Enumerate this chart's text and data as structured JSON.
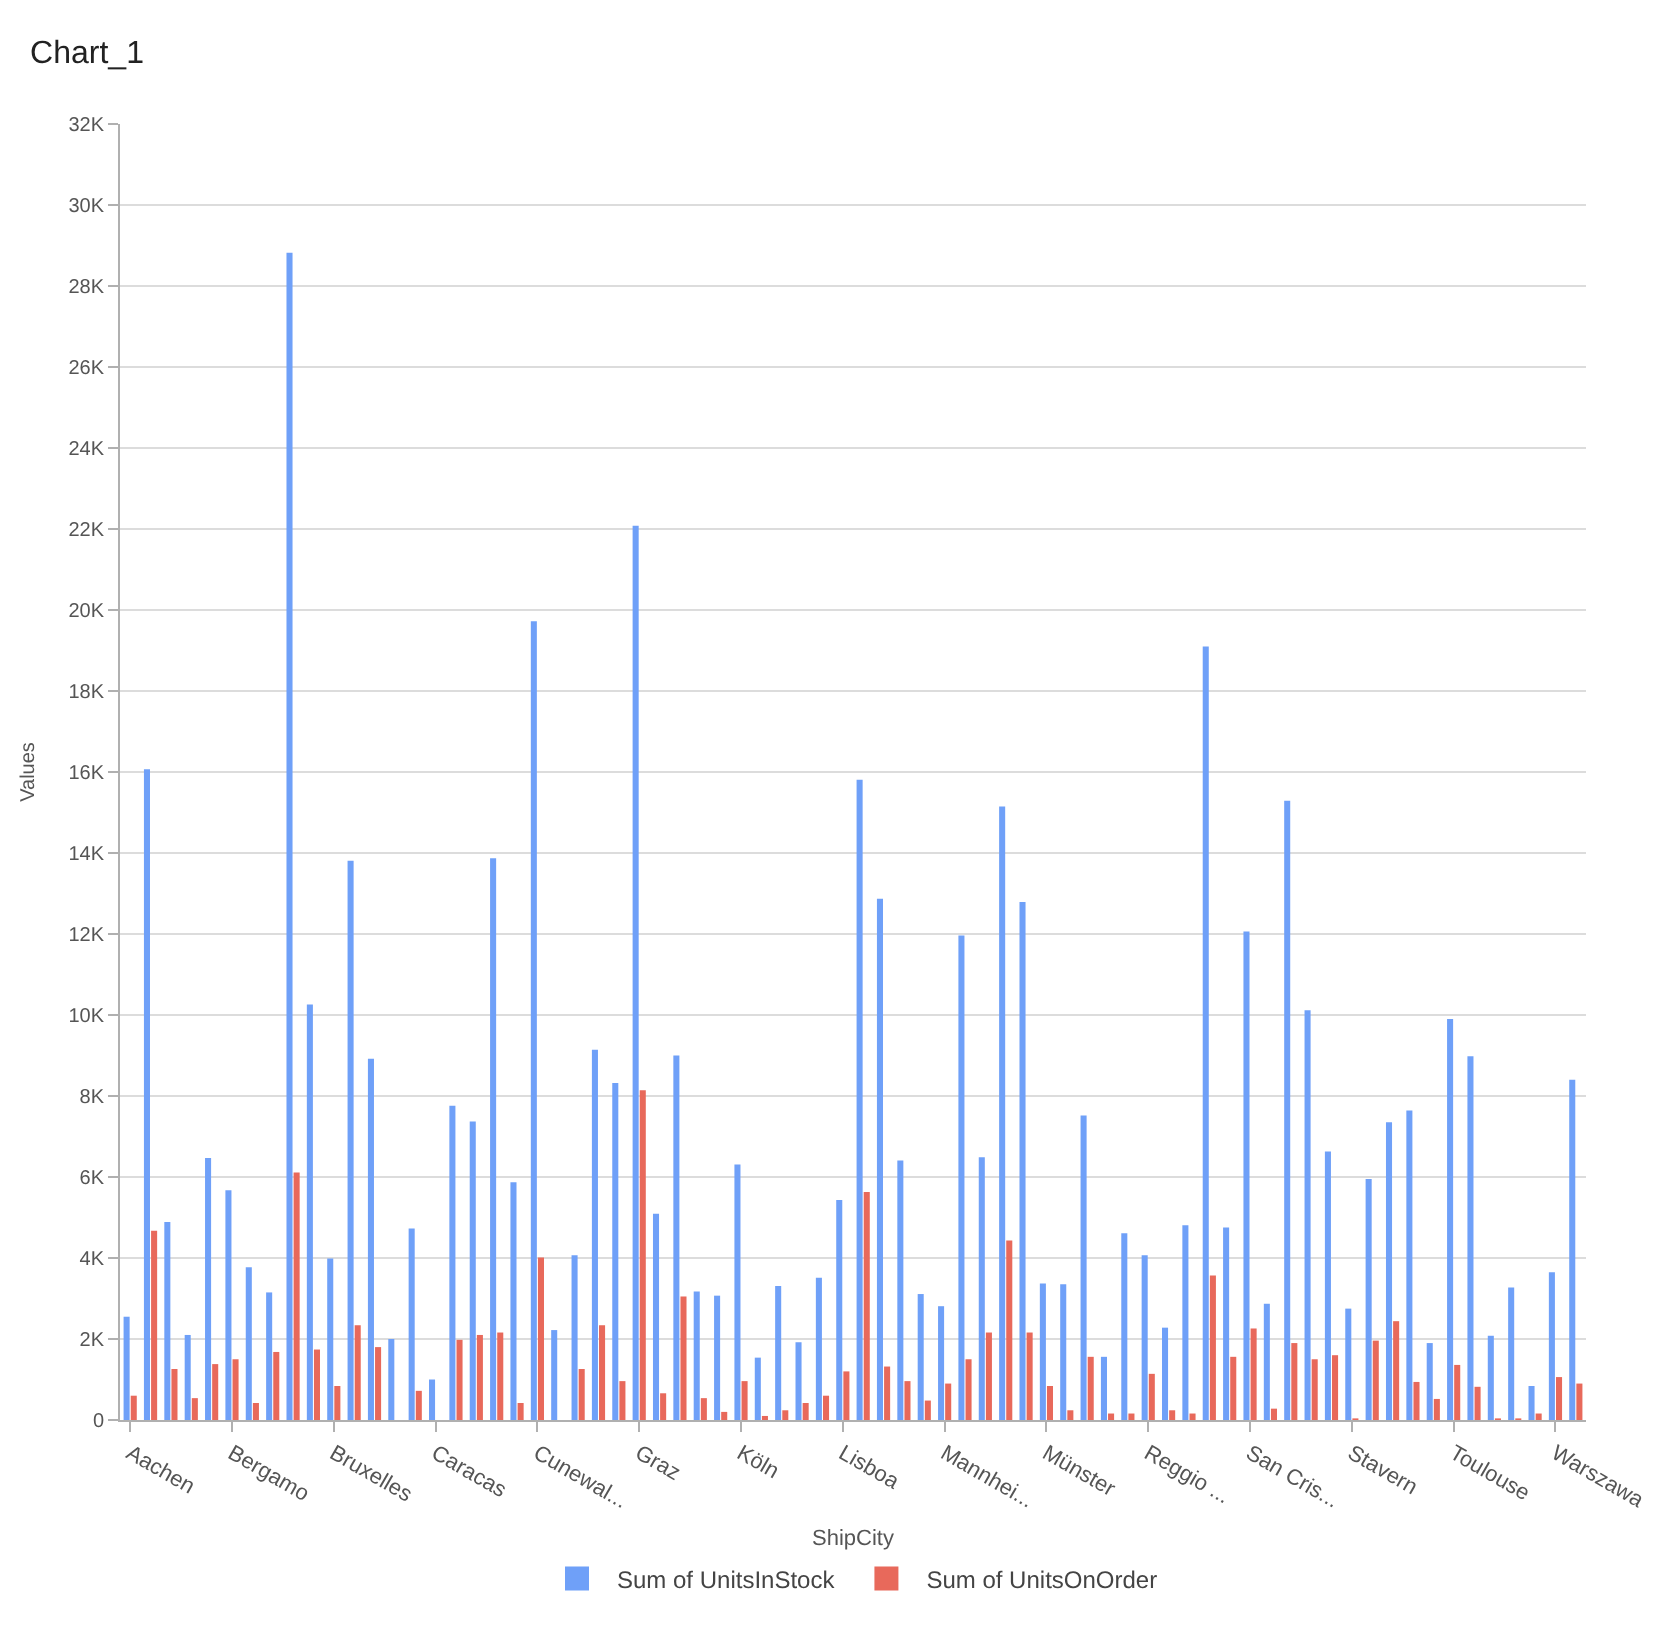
{
  "chart_data": {
    "type": "bar",
    "title": "Chart_1",
    "xlabel": "ShipCity",
    "ylabel": "Values",
    "categories": [
      "Aachen",
      null,
      null,
      null,
      null,
      "Bergamo",
      null,
      null,
      null,
      null,
      "Bruxelles",
      null,
      null,
      null,
      null,
      "Caracas",
      null,
      null,
      null,
      null,
      "Cunewal...",
      null,
      null,
      null,
      null,
      "Graz",
      null,
      null,
      null,
      null,
      "Köln",
      null,
      null,
      null,
      null,
      "Lisboa",
      null,
      null,
      null,
      null,
      "Mannhei...",
      null,
      null,
      null,
      null,
      "Münster",
      null,
      null,
      null,
      null,
      "Reggio ...",
      null,
      null,
      null,
      null,
      "San Cris...",
      null,
      null,
      null,
      null,
      "Stavern",
      null,
      null,
      null,
      null,
      "Toulouse",
      null,
      null,
      null,
      null,
      "Warszawa",
      null
    ],
    "series": [
      {
        "name": "Sum of UnitsInStock",
        "color": "#6fa0f8",
        "values": [
          2550,
          16070,
          4890,
          2100,
          6470,
          5670,
          3770,
          3150,
          28820,
          10260,
          3990,
          13810,
          8920,
          2000,
          4730,
          1000,
          7760,
          7370,
          13870,
          5870,
          19720,
          2220,
          4070,
          9140,
          8320,
          22080,
          5090,
          9000,
          3170,
          3070,
          6310,
          1540,
          3310,
          1920,
          3510,
          5430,
          15810,
          12870,
          6410,
          3110,
          2810,
          11960,
          6490,
          15150,
          12790,
          3370,
          3350,
          7520,
          1560,
          4610,
          4070,
          2280,
          4810,
          19100,
          4750,
          12060,
          2870,
          15290,
          10120,
          6630,
          2750,
          5950,
          7350,
          7640,
          1900,
          9900,
          8980,
          2080,
          3270,
          840,
          3650,
          8400
        ]
      },
      {
        "name": "Sum of UnitsOnOrder",
        "color": "#e8695b",
        "values": [
          600,
          4670,
          1260,
          540,
          1380,
          1500,
          420,
          1680,
          6110,
          1740,
          840,
          2340,
          1800,
          0,
          720,
          0,
          1980,
          2100,
          2160,
          420,
          4010,
          0,
          1260,
          2340,
          960,
          8140,
          660,
          3050,
          540,
          200,
          960,
          100,
          240,
          420,
          600,
          1200,
          5630,
          1320,
          960,
          480,
          900,
          1500,
          2160,
          4430,
          2160,
          840,
          240,
          1560,
          160,
          160,
          1140,
          240,
          160,
          3570,
          1560,
          2260,
          280,
          1900,
          1500,
          1600,
          40,
          1960,
          2440,
          940,
          520,
          1360,
          820,
          40,
          40,
          160,
          1060,
          900
        ]
      }
    ],
    "ylim": [
      0,
      32000
    ],
    "yticks": [
      0,
      {
        "value": 2000,
        "label": "2K"
      },
      {
        "value": 4000,
        "label": "4K"
      },
      {
        "value": 6000,
        "label": "6K"
      },
      {
        "value": 8000,
        "label": "8K"
      },
      {
        "value": 10000,
        "label": "10K"
      },
      {
        "value": 12000,
        "label": "12K"
      },
      {
        "value": 14000,
        "label": "14K"
      },
      {
        "value": 16000,
        "label": "16K"
      },
      {
        "value": 18000,
        "label": "18K"
      },
      {
        "value": 20000,
        "label": "20K"
      },
      {
        "value": 22000,
        "label": "22K"
      },
      {
        "value": 24000,
        "label": "24K"
      },
      {
        "value": 26000,
        "label": "26K"
      },
      {
        "value": 28000,
        "label": "28K"
      },
      {
        "value": 30000,
        "label": "30K"
      },
      {
        "value": 32000,
        "label": "32K"
      }
    ],
    "grid": "y",
    "legend": "bottom"
  }
}
